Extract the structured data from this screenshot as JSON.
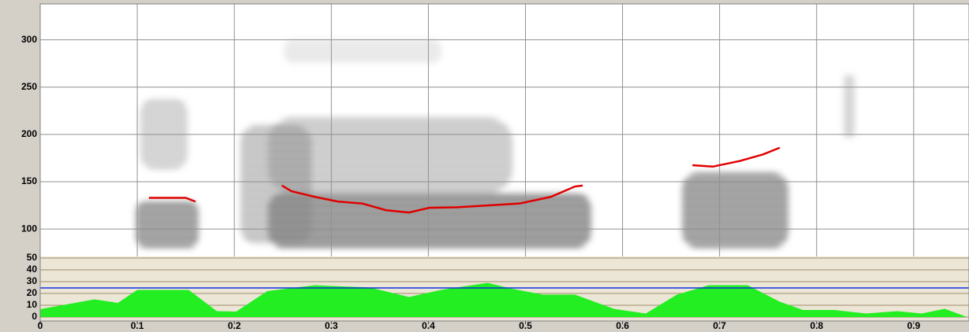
{
  "chart_data": [
    {
      "type": "line",
      "color": "#e00000",
      "xlim": [
        0,
        0.957
      ],
      "ylim": [
        71,
        338
      ],
      "yticks": [
        100,
        150,
        200,
        250,
        300
      ],
      "grid": true,
      "series": [
        {
          "x": [
            0.112,
            0.13,
            0.15,
            0.16
          ],
          "values": [
            133,
            133,
            133,
            129
          ]
        },
        {
          "x": [
            0.249,
            0.259,
            0.283,
            0.307,
            0.332,
            0.356,
            0.38,
            0.401,
            0.429,
            0.461,
            0.494,
            0.526,
            0.551,
            0.559
          ],
          "values": [
            146,
            140,
            134,
            129,
            127,
            120,
            117.5,
            122.5,
            123,
            125,
            127,
            134,
            145,
            146
          ]
        },
        {
          "x": [
            0.672,
            0.693,
            0.721,
            0.745,
            0.762
          ],
          "values": [
            167.5,
            166,
            172,
            179,
            186
          ]
        }
      ]
    },
    {
      "type": "area",
      "color": "#22ee22",
      "xlim": [
        0,
        0.957
      ],
      "ylim": [
        -3.3,
        51.3
      ],
      "xticks": [
        0,
        0.1,
        0.2,
        0.3,
        0.4,
        0.5,
        0.6,
        0.7,
        0.8,
        0.9
      ],
      "yticks": [
        0,
        10,
        20,
        30,
        40,
        50
      ],
      "grid": true,
      "x": [
        0,
        0.056,
        0.08,
        0.1,
        0.153,
        0.182,
        0.202,
        0.234,
        0.283,
        0.34,
        0.38,
        0.413,
        0.461,
        0.486,
        0.518,
        0.551,
        0.591,
        0.624,
        0.656,
        0.689,
        0.729,
        0.762,
        0.786,
        0.818,
        0.851,
        0.883,
        0.908,
        0.932,
        0.955
      ],
      "values": [
        6.7,
        15,
        12,
        23,
        23,
        5,
        4.7,
        22,
        27,
        25,
        17,
        23,
        29,
        24,
        19,
        19,
        7,
        3,
        19,
        27,
        27,
        13,
        6,
        6,
        3,
        5,
        3,
        7,
        0
      ]
    }
  ]
}
